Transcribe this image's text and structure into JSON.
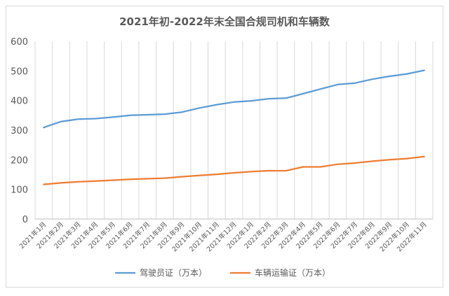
{
  "chart_data": {
    "type": "line",
    "title": "2021年初-2022年末全国合规司机和车辆数",
    "xlabel": "",
    "ylabel": "",
    "ylim": [
      0,
      600
    ],
    "yticks": [
      0,
      100,
      200,
      300,
      400,
      500,
      600
    ],
    "grid": "vertical",
    "legend": "bottom",
    "categories": [
      "2021年1月",
      "2021年2月",
      "2021年3月",
      "2021年4月",
      "2021年5月",
      "2021年6月",
      "2021年7月",
      "2021年8月",
      "2021年9月",
      "2021年10月",
      "2021年11月",
      "2021年12月",
      "2022年1月",
      "2022年2月",
      "2022年3月",
      "2022年4月",
      "2022年5月",
      "2022年6月",
      "2022年7月",
      "2022年8月",
      "2022年9月",
      "2022年10月",
      "2022年11月"
    ],
    "series": [
      {
        "name": "驾驶员证（万本）",
        "color": "#5b9bd5",
        "values": [
          309,
          329,
          337,
          339,
          344,
          350,
          352,
          354,
          361,
          375,
          386,
          395,
          399,
          406,
          408,
          423,
          439,
          454,
          459,
          472,
          482,
          490,
          502
        ]
      },
      {
        "name": "车辆运输证（万本）",
        "color": "#ed7d31",
        "values": [
          117,
          122,
          126,
          128,
          131,
          134,
          136,
          138,
          143,
          147,
          151,
          156,
          160,
          163,
          163,
          176,
          176,
          185,
          189,
          195,
          200,
          204,
          211
        ]
      }
    ]
  }
}
